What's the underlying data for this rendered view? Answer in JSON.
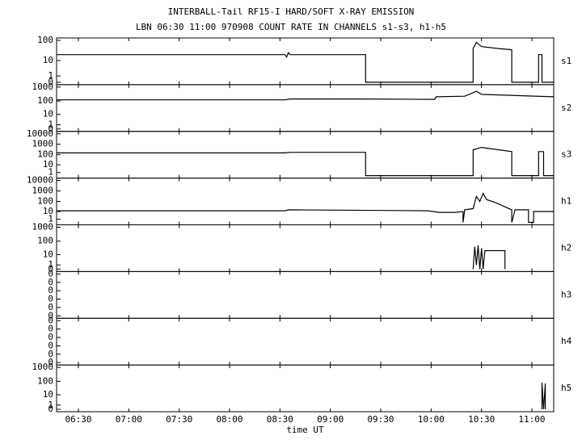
{
  "title": "INTERBALL-Tail RF15-I HARD/SOFT X-RAY EMISSION",
  "subtitle": "LBN 06:30 11:00 970908  COUNT RATE IN CHANNELS s1-s3, h1-h5",
  "chart_data": [
    {
      "type": "line",
      "label": "s1",
      "yscale": "symlog",
      "xlim": [
        "06:17",
        "11:13"
      ],
      "ylim": [
        0,
        100
      ],
      "yticks": [
        0,
        1,
        10,
        100
      ],
      "series": [
        {
          "color": "#000000",
          "x": [
            "06:17",
            "08:33",
            "08:34",
            "08:35",
            "08:36",
            "09:21",
            "09:21",
            "10:25",
            "10:25",
            "10:27",
            "10:30",
            "10:40",
            "10:48",
            "10:48",
            "11:04",
            "11:04",
            "11:06",
            "11:06",
            "11:13"
          ],
          "values": [
            20,
            20,
            15,
            25,
            20,
            20,
            0,
            0,
            40,
            80,
            50,
            40,
            35,
            0,
            0,
            20,
            20,
            0,
            0
          ]
        }
      ]
    },
    {
      "type": "line",
      "label": "s2",
      "yscale": "symlog",
      "xlim": [
        "06:17",
        "11:13"
      ],
      "ylim": [
        0,
        1000
      ],
      "yticks": [
        0,
        1,
        10,
        100,
        1000
      ],
      "series": [
        {
          "color": "#000000",
          "x": [
            "06:17",
            "08:33",
            "08:36",
            "09:21",
            "10:02",
            "10:03",
            "10:20",
            "10:27",
            "10:30",
            "11:13"
          ],
          "values": [
            120,
            120,
            140,
            140,
            130,
            200,
            220,
            500,
            300,
            200
          ]
        }
      ]
    },
    {
      "type": "line",
      "label": "s3",
      "yscale": "symlog",
      "xlim": [
        "06:17",
        "11:13"
      ],
      "ylim": [
        0,
        10000
      ],
      "yticks": [
        1,
        10,
        100,
        1000,
        10000
      ],
      "series": [
        {
          "color": "#000000",
          "x": [
            "06:17",
            "08:33",
            "08:36",
            "09:21",
            "09:21",
            "10:25",
            "10:25",
            "10:30",
            "10:48",
            "10:48",
            "11:04",
            "11:04",
            "11:07",
            "11:07",
            "11:13"
          ],
          "values": [
            150,
            150,
            170,
            170,
            0,
            0,
            300,
            500,
            200,
            0,
            0,
            200,
            200,
            0,
            0
          ]
        }
      ]
    },
    {
      "type": "line",
      "label": "h1",
      "yscale": "symlog",
      "xlim": [
        "06:17",
        "11:13"
      ],
      "ylim": [
        0,
        10000
      ],
      "yticks": [
        1,
        10,
        100,
        1000,
        10000
      ],
      "series": [
        {
          "color": "#000000",
          "x": [
            "06:17",
            "08:33",
            "08:35",
            "09:58",
            "10:05",
            "10:14",
            "10:19",
            "10:19",
            "10:20",
            "10:25",
            "10:27",
            "10:29",
            "10:31",
            "10:33",
            "10:38",
            "10:48",
            "10:48",
            "10:50",
            "10:58",
            "10:58",
            "11:01",
            "11:01",
            "11:13"
          ],
          "values": [
            12,
            12,
            15,
            12,
            8,
            8,
            10,
            0,
            15,
            20,
            300,
            100,
            600,
            150,
            80,
            15,
            0,
            15,
            15,
            0,
            0,
            10,
            10
          ]
        }
      ]
    },
    {
      "type": "line",
      "label": "h2",
      "yscale": "symlog",
      "xlim": [
        "06:17",
        "11:13"
      ],
      "ylim": [
        0,
        1000
      ],
      "yticks": [
        0,
        1,
        10,
        100,
        1000
      ],
      "series": [
        {
          "color": "#000000",
          "x": [
            "10:25",
            "10:26",
            "10:27",
            "10:28",
            "10:29",
            "10:30",
            "10:31",
            "10:32",
            "10:33",
            "10:44",
            "10:44"
          ],
          "values": [
            0,
            40,
            1,
            50,
            0,
            30,
            0,
            20,
            20,
            20,
            0
          ]
        }
      ]
    },
    {
      "type": "line",
      "label": "h3",
      "yscale": "linear",
      "xlim": [
        "06:17",
        "11:13"
      ],
      "ylim": [
        0,
        1
      ],
      "yticks": [
        0,
        {
          "value": 0.2,
          "label": "0"
        },
        {
          "value": 0.4,
          "label": "0"
        },
        {
          "value": 0.6,
          "label": "0"
        },
        {
          "value": 0.8,
          "label": "0"
        },
        {
          "value": 1,
          "label": "0"
        }
      ],
      "series": []
    },
    {
      "type": "line",
      "label": "h4",
      "yscale": "linear",
      "xlim": [
        "06:17",
        "11:13"
      ],
      "ylim": [
        0,
        1
      ],
      "yticks": [
        0,
        {
          "value": 0.2,
          "label": "0"
        },
        {
          "value": 0.4,
          "label": "0"
        },
        {
          "value": 0.6,
          "label": "0"
        },
        {
          "value": 0.8,
          "label": "0"
        },
        {
          "value": 1,
          "label": "0"
        }
      ],
      "series": []
    },
    {
      "type": "line",
      "label": "h5",
      "yscale": "symlog",
      "xlim": [
        "06:17",
        "11:13"
      ],
      "ylim": [
        0,
        1000
      ],
      "yticks": [
        0,
        1,
        10,
        100,
        1000
      ],
      "xlabel": "time UT",
      "xticks": [
        "06:30",
        "07:00",
        "07:30",
        "08:00",
        "08:30",
        "09:00",
        "09:30",
        "10:00",
        "10:30",
        "11:00"
      ],
      "series": [
        {
          "color": "#000000",
          "x": [
            "11:06",
            "11:06",
            "11:07",
            "11:08",
            "11:08"
          ],
          "values": [
            0,
            80,
            0,
            70,
            0
          ]
        }
      ]
    }
  ]
}
